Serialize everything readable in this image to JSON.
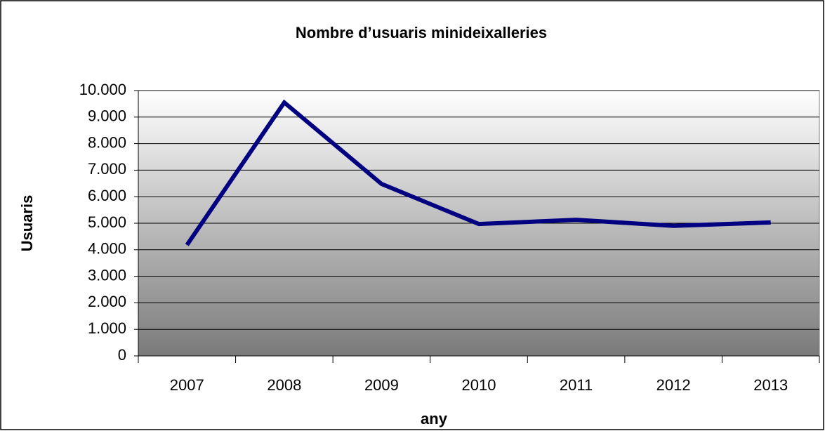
{
  "chart_data": {
    "type": "line",
    "title": "Nombre d’usuaris minideixalleries",
    "x_label": "any",
    "y_label": "Usuaris",
    "categories": [
      "2007",
      "2008",
      "2009",
      "2010",
      "2011",
      "2012",
      "2013"
    ],
    "series": [
      {
        "name": "Usuaris",
        "color": "#000080",
        "values": [
          4180,
          9550,
          6480,
          4970,
          5130,
          4900,
          5030
        ]
      }
    ],
    "ylim": [
      0,
      10000
    ],
    "yticks": [
      0,
      {
        "value": 1000,
        "label": "1.000"
      },
      {
        "value": 2000,
        "label": "2.000"
      },
      {
        "value": 3000,
        "label": "3.000"
      },
      {
        "value": 4000,
        "label": "4.000"
      },
      {
        "value": 5000,
        "label": "5.000"
      },
      {
        "value": 6000,
        "label": "6.000"
      },
      {
        "value": 7000,
        "label": "7.000"
      },
      {
        "value": 8000,
        "label": "8.000"
      },
      {
        "value": 9000,
        "label": "9.000"
      },
      {
        "value": 10000,
        "label": "10.000"
      }
    ],
    "grid": true
  }
}
